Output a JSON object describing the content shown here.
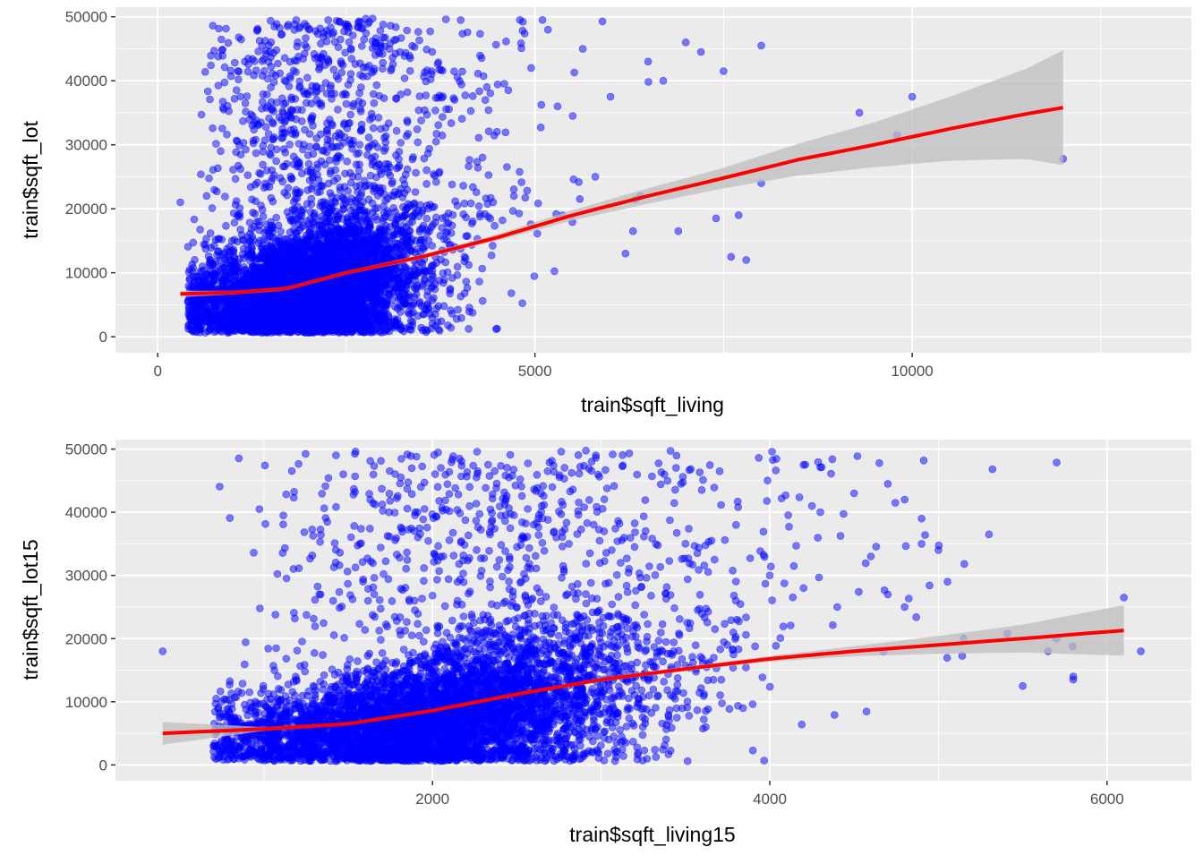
{
  "colors": {
    "panel_background": "#ebebeb",
    "grid_major": "#ffffff",
    "point_fill": "#0000ff",
    "smooth_line": "#ff0000",
    "confidence_band": "#bebebe"
  },
  "chart_data": [
    {
      "type": "scatter",
      "xlabel": "train$sqft_living",
      "ylabel": "train$sqft_lot",
      "xlim": [
        -560,
        13700
      ],
      "ylim": [
        -2500,
        51500
      ],
      "x_ticks": [
        0,
        5000,
        10000
      ],
      "x_tick_labels": [
        "0",
        "5000",
        "10000"
      ],
      "y_ticks": [
        0,
        10000,
        20000,
        30000,
        40000,
        50000
      ],
      "y_tick_labels": [
        "0",
        "10000",
        "20000",
        "30000",
        "40000",
        "50000"
      ],
      "grid": true,
      "points": {
        "dense_cluster": {
          "x_mean": 2000,
          "x_sd": 800,
          "y_center": 7000,
          "x_range": [
            400,
            5500
          ],
          "y_range": [
            600,
            25000
          ]
        },
        "scatter_outliers": [
          [
            300,
            21000
          ],
          [
            4950,
            42000
          ],
          [
            5300,
            36000
          ],
          [
            6000,
            37500
          ],
          [
            6500,
            43000
          ],
          [
            7000,
            46000
          ],
          [
            7200,
            44500
          ],
          [
            7500,
            41500
          ],
          [
            8000,
            45500
          ],
          [
            6700,
            40000
          ],
          [
            7700,
            19000
          ],
          [
            7400,
            18500
          ],
          [
            7600,
            12500
          ],
          [
            7800,
            12000
          ],
          [
            8000,
            24000
          ],
          [
            9300,
            35000
          ],
          [
            10000,
            37500
          ],
          [
            9800,
            31500
          ],
          [
            12000,
            27800
          ],
          [
            6300,
            16500
          ],
          [
            6900,
            16500
          ],
          [
            6400,
            22000
          ],
          [
            5800,
            25000
          ],
          [
            6200,
            13000
          ],
          [
            5500,
            34500
          ],
          [
            4800,
            49500
          ],
          [
            5100,
            49500
          ]
        ]
      },
      "smooth": {
        "x": [
          300,
          1000,
          1700,
          2500,
          3500,
          4500,
          5500,
          6500,
          7500,
          8500,
          9500,
          10500,
          11500,
          12000
        ],
        "y": [
          6700,
          6900,
          7500,
          10000,
          12500,
          15500,
          19000,
          22000,
          24800,
          27700,
          30000,
          32500,
          34800,
          35800
        ],
        "band_halfwidth": [
          500,
          300,
          300,
          300,
          350,
          500,
          800,
          1200,
          1600,
          2500,
          3500,
          5000,
          7000,
          9000
        ]
      }
    },
    {
      "type": "scatter",
      "xlabel": "train$sqft_living15",
      "ylabel": "train$sqft_lot15",
      "xlim": [
        120,
        6500
      ],
      "ylim": [
        -2500,
        51500
      ],
      "x_ticks": [
        2000,
        4000,
        6000
      ],
      "x_tick_labels": [
        "2000",
        "4000",
        "6000"
      ],
      "y_ticks": [
        0,
        10000,
        20000,
        30000,
        40000,
        50000
      ],
      "y_tick_labels": [
        "0",
        "10000",
        "20000",
        "30000",
        "40000",
        "50000"
      ],
      "grid": true,
      "points": {
        "dense_cluster": {
          "x_mean": 2000,
          "x_sd": 650,
          "y_center": 7000,
          "x_range": [
            700,
            4900
          ],
          "y_range": [
            600,
            24000
          ]
        },
        "scatter_outliers": [
          [
            400,
            18000
          ],
          [
            6100,
            26500
          ],
          [
            5800,
            14000
          ],
          [
            5800,
            13500
          ],
          [
            5500,
            12500
          ],
          [
            5700,
            20000
          ],
          [
            5300,
            36500
          ],
          [
            5150,
            20000
          ],
          [
            4700,
            44500
          ],
          [
            4800,
            42000
          ],
          [
            4500,
            43000
          ],
          [
            4300,
            40000
          ],
          [
            4200,
            47500
          ],
          [
            4250,
            41000
          ],
          [
            5000,
            34000
          ],
          [
            4900,
            35000
          ],
          [
            4600,
            33000
          ],
          [
            4900,
            39000
          ],
          [
            4700,
            27000
          ],
          [
            4800,
            25000
          ],
          [
            4400,
            25000
          ],
          [
            4200,
            28000
          ],
          [
            4000,
            30000
          ],
          [
            3800,
            38000
          ],
          [
            6200,
            18000
          ],
          [
            5650,
            18000
          ]
        ]
      },
      "smooth": {
        "x": [
          400,
          1000,
          1500,
          2000,
          2500,
          3000,
          3500,
          4000,
          4500,
          5000,
          5500,
          6100
        ],
        "y": [
          5000,
          5700,
          6500,
          8600,
          11200,
          13500,
          15200,
          16800,
          18000,
          19000,
          20000,
          21300
        ],
        "band_halfwidth": [
          1800,
          300,
          250,
          250,
          250,
          300,
          350,
          450,
          800,
          1400,
          2200,
          4000
        ]
      }
    }
  ]
}
